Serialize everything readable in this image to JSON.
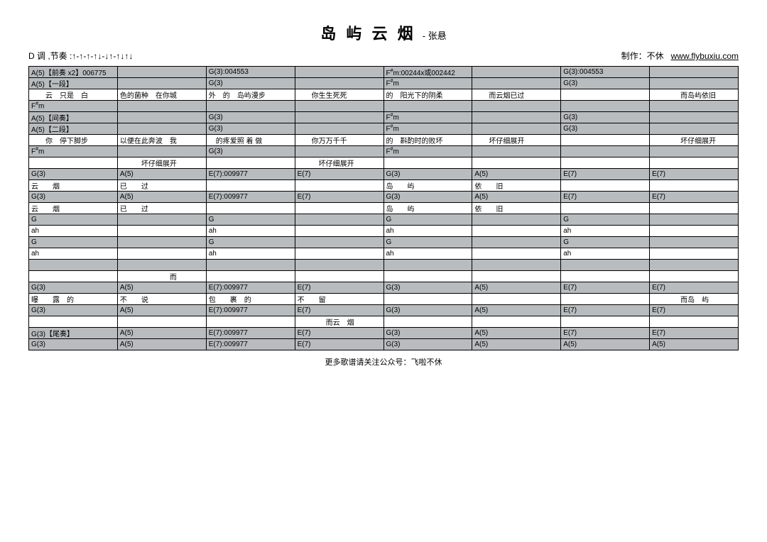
{
  "title": "岛 屿 云 烟",
  "artist": "- 张悬",
  "key_info": "D 调 ,节奏 :↑-↑-↑-↑↓-↓↑-↑↓↑↓",
  "credit_label": "制作：不休",
  "credit_url": "www.flybuxiu.com",
  "footer": "更多歌谱请关注公众号：飞啦不休",
  "chord_labels": {
    "A5_intro": "A(5)【前奏 x2】006775",
    "G3_004553": "G(3):004553",
    "Fsm_00244x": "F♯m:00244x或002442",
    "A5_sec1": "A(5)【一段】",
    "G3": "G(3)",
    "Fsm": "F♯m",
    "A5_inter": "A(5)【间奏】",
    "A5_sec2": "A(5)【二段】",
    "A5": "A(5)",
    "E7_009977": "E(7):009977",
    "E7": "E(7)",
    "G": "G",
    "G3_outro": "G(3)【尾奏】"
  },
  "rows": [
    {
      "type": "chord",
      "c": [
        "A5_intro",
        "",
        "G3_004553",
        "",
        "Fsm_00244x",
        "",
        "G3_004553",
        ""
      ]
    },
    {
      "type": "chord",
      "c": [
        "A5_sec1",
        "",
        "G3",
        "",
        "Fsm",
        "",
        "G3",
        ""
      ]
    },
    {
      "type": "lyric",
      "t": [
        "　　云　只是　白",
        "色的菌种　在你城",
        "外　的　岛屿漫步",
        "　　你生生死死",
        "的　阳光下的阴柔",
        "　　而云烟已过",
        "",
        "　　　　而岛屿依旧"
      ]
    },
    {
      "type": "chord",
      "c": [
        "Fsm",
        "",
        "",
        "",
        "",
        "",
        "",
        ""
      ]
    },
    {
      "type": "chord",
      "c": [
        "A5_inter",
        "",
        "G3",
        "",
        "Fsm",
        "",
        "G3",
        ""
      ]
    },
    {
      "type": "chord",
      "c": [
        "A5_sec2",
        "",
        "G3",
        "",
        "Fsm",
        "",
        "G3",
        ""
      ]
    },
    {
      "type": "lyric",
      "t": [
        "　　你　停下脚步",
        "以便在此奔波　我",
        "　的疼爱照 着 做",
        "　　你万万千千",
        "的　斟酌时的败坏",
        "　　坏仔细展开",
        "",
        "　　　　坏仔细展开"
      ]
    },
    {
      "type": "chord",
      "c": [
        "Fsm",
        "",
        "G3",
        "",
        "Fsm",
        "",
        "",
        ""
      ]
    },
    {
      "type": "lyric",
      "t": [
        "",
        "　　　坏仔细展开",
        "",
        "　　　坏仔细展开",
        "",
        "",
        "",
        ""
      ]
    },
    {
      "type": "chord",
      "c": [
        "G3",
        "A5",
        "E7_009977",
        "E7",
        "G3",
        "A5",
        "E7",
        "E7"
      ]
    },
    {
      "type": "lyric",
      "t": [
        "云　　烟",
        "已　　过",
        "",
        "",
        "岛　　屿",
        "依　　旧",
        "",
        ""
      ]
    },
    {
      "type": "chord",
      "c": [
        "G3",
        "A5",
        "E7_009977",
        "E7",
        "G3",
        "A5",
        "E7",
        "E7"
      ]
    },
    {
      "type": "lyric",
      "t": [
        "云　　烟",
        "已　　过",
        "",
        "",
        "岛　　屿",
        "依　　旧",
        "",
        ""
      ]
    },
    {
      "type": "chord",
      "c": [
        "G",
        "",
        "G",
        "",
        "G",
        "",
        "G",
        ""
      ]
    },
    {
      "type": "lyric",
      "t": [
        "ah",
        "",
        "ah",
        "",
        "ah",
        "",
        "ah",
        ""
      ]
    },
    {
      "type": "chord",
      "c": [
        "G",
        "",
        "G",
        "",
        "G",
        "",
        "G",
        ""
      ]
    },
    {
      "type": "lyric",
      "t": [
        "ah",
        "",
        "ah",
        "",
        "ah",
        "",
        "ah",
        ""
      ]
    },
    {
      "type": "chord",
      "c": [
        "",
        "",
        "",
        "",
        "",
        "",
        "",
        ""
      ]
    },
    {
      "type": "lyric",
      "t": [
        "",
        "　　　　　　　而",
        "",
        "",
        "",
        "",
        "",
        ""
      ]
    },
    {
      "type": "chord",
      "c": [
        "G3",
        "A5",
        "E7_009977",
        "E7",
        "G3",
        "A5",
        "E7",
        "E7"
      ]
    },
    {
      "type": "lyric",
      "t": [
        "曝　　露　的",
        "不　　说",
        "包　　裹　的",
        "不　　留",
        "",
        "",
        "",
        "　　　　而岛　屿"
      ]
    },
    {
      "type": "chord",
      "c": [
        "G3",
        "A5",
        "E7_009977",
        "E7",
        "G3",
        "A5",
        "E7",
        "E7"
      ]
    },
    {
      "type": "lyric",
      "t": [
        "",
        "",
        "",
        "　　　　而云　烟",
        "",
        "",
        "",
        ""
      ]
    },
    {
      "type": "chord",
      "c": [
        "G3_outro",
        "A5",
        "E7_009977",
        "E7",
        "G3",
        "A5",
        "E7",
        "E7"
      ]
    },
    {
      "type": "chord",
      "c": [
        "G3",
        "A5",
        "E7_009977",
        "E7",
        "G3",
        "A5",
        "A5",
        "A5"
      ]
    }
  ]
}
